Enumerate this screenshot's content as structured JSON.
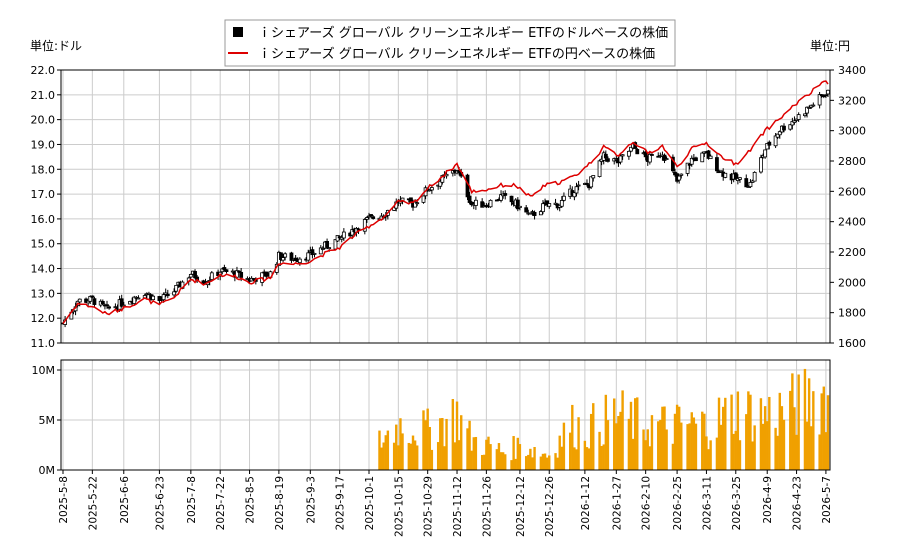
{
  "chart_data": [
    {
      "type": "candlestick+line",
      "legend": {
        "placement": "top-center",
        "entries": [
          {
            "label": "ｉシェアーズ グローバル クリーンエネルギー ETFのドルベースの株価",
            "marker": "square",
            "color": "#000000"
          },
          {
            "label": "ｉシェアーズ グローバル クリーンエネルギー ETFの円ベースの株価",
            "marker": "line",
            "color": "#dd0000"
          }
        ]
      },
      "left_unit": "単位:ドル",
      "right_unit": "単位:円",
      "ylim_left": [
        11.0,
        22.0
      ],
      "ylim_right": [
        1600,
        3400
      ],
      "yticks_left": [
        "11.0",
        "12.0",
        "13.0",
        "14.0",
        "15.0",
        "16.0",
        "17.0",
        "18.0",
        "19.0",
        "20.0",
        "21.0",
        "22.0"
      ],
      "yticks_right": [
        "1600",
        "1800",
        "2000",
        "2200",
        "2400",
        "2600",
        "2800",
        "3000",
        "3200",
        "3400"
      ],
      "grid": true,
      "series_usd_close_anchors": [
        [
          "2025-05-08",
          11.8
        ],
        [
          "2025-05-15",
          12.7
        ],
        [
          "2025-05-22",
          12.75
        ],
        [
          "2025-05-29",
          12.35
        ],
        [
          "2025-06-06",
          12.65
        ],
        [
          "2025-06-16",
          13.05
        ],
        [
          "2025-06-23",
          12.7
        ],
        [
          "2025-06-30",
          13.1
        ],
        [
          "2025-07-08",
          13.8
        ],
        [
          "2025-07-15",
          13.5
        ],
        [
          "2025-07-22",
          13.9
        ],
        [
          "2025-07-29",
          13.8
        ],
        [
          "2025-08-05",
          13.55
        ],
        [
          "2025-08-15",
          13.8
        ],
        [
          "2025-08-19",
          14.5
        ],
        [
          "2025-08-26",
          14.4
        ],
        [
          "2025-09-03",
          14.55
        ],
        [
          "2025-09-10",
          14.9
        ],
        [
          "2025-09-17",
          15.2
        ],
        [
          "2025-09-24",
          15.6
        ],
        [
          "2025-10-01",
          16.0
        ],
        [
          "2025-10-08",
          16.2
        ],
        [
          "2025-10-15",
          16.7
        ],
        [
          "2025-10-22",
          16.6
        ],
        [
          "2025-10-29",
          17.2
        ],
        [
          "2025-11-05",
          17.6
        ],
        [
          "2025-11-12",
          18.0
        ],
        [
          "2025-11-19",
          16.6
        ],
        [
          "2025-11-26",
          16.6
        ],
        [
          "2025-12-03",
          16.9
        ],
        [
          "2025-12-10",
          16.6
        ],
        [
          "2025-12-17",
          16.1
        ],
        [
          "2025-12-24",
          16.55
        ],
        [
          "2025-12-31",
          16.6
        ],
        [
          "2026-01-07",
          17.2
        ],
        [
          "2026-01-14",
          17.4
        ],
        [
          "2026-01-21",
          18.5
        ],
        [
          "2026-01-28",
          18.3
        ],
        [
          "2026-02-04",
          18.9
        ],
        [
          "2026-02-11",
          18.4
        ],
        [
          "2026-02-18",
          18.7
        ],
        [
          "2026-02-25",
          17.5
        ],
        [
          "2026-03-04",
          18.4
        ],
        [
          "2026-03-11",
          18.6
        ],
        [
          "2026-03-18",
          17.9
        ],
        [
          "2026-03-25",
          17.6
        ],
        [
          "2026-04-01",
          17.4
        ],
        [
          "2026-04-08",
          18.8
        ],
        [
          "2026-04-15",
          19.6
        ],
        [
          "2026-04-22",
          20.0
        ],
        [
          "2026-04-29",
          20.5
        ],
        [
          "2026-05-06",
          21.0
        ],
        [
          "2026-05-08",
          21.2
        ]
      ],
      "series_jpy_anchors": [
        [
          "2025-05-08",
          1730
        ],
        [
          "2025-05-15",
          1860
        ],
        [
          "2025-05-22",
          1840
        ],
        [
          "2025-05-29",
          1790
        ],
        [
          "2025-06-06",
          1830
        ],
        [
          "2025-06-16",
          1890
        ],
        [
          "2025-06-23",
          1850
        ],
        [
          "2025-06-30",
          1900
        ],
        [
          "2025-07-08",
          2020
        ],
        [
          "2025-07-15",
          1990
        ],
        [
          "2025-07-22",
          2050
        ],
        [
          "2025-07-29",
          2040
        ],
        [
          "2025-08-05",
          2000
        ],
        [
          "2025-08-15",
          2030
        ],
        [
          "2025-08-19",
          2130
        ],
        [
          "2025-08-26",
          2120
        ],
        [
          "2025-09-03",
          2140
        ],
        [
          "2025-09-10",
          2190
        ],
        [
          "2025-09-17",
          2230
        ],
        [
          "2025-09-24",
          2310
        ],
        [
          "2025-10-01",
          2370
        ],
        [
          "2025-10-08",
          2430
        ],
        [
          "2025-10-15",
          2530
        ],
        [
          "2025-10-22",
          2520
        ],
        [
          "2025-10-29",
          2620
        ],
        [
          "2025-11-05",
          2700
        ],
        [
          "2025-11-12",
          2780
        ],
        [
          "2025-11-19",
          2600
        ],
        [
          "2025-11-26",
          2610
        ],
        [
          "2025-12-03",
          2640
        ],
        [
          "2025-12-10",
          2640
        ],
        [
          "2025-12-17",
          2560
        ],
        [
          "2025-12-24",
          2640
        ],
        [
          "2025-12-31",
          2660
        ],
        [
          "2026-01-07",
          2700
        ],
        [
          "2026-01-14",
          2780
        ],
        [
          "2026-01-21",
          2890
        ],
        [
          "2026-01-28",
          2840
        ],
        [
          "2026-02-04",
          2930
        ],
        [
          "2026-02-11",
          2850
        ],
        [
          "2026-02-18",
          2900
        ],
        [
          "2026-02-25",
          2760
        ],
        [
          "2026-03-04",
          2880
        ],
        [
          "2026-03-11",
          2920
        ],
        [
          "2026-03-18",
          2830
        ],
        [
          "2026-03-25",
          2780
        ],
        [
          "2026-04-01",
          2870
        ],
        [
          "2026-04-08",
          3000
        ],
        [
          "2026-04-15",
          3080
        ],
        [
          "2026-04-22",
          3170
        ],
        [
          "2026-04-29",
          3240
        ],
        [
          "2026-05-06",
          3330
        ],
        [
          "2026-05-08",
          3300
        ]
      ],
      "xticks": [
        "2025-5-8",
        "2025-5-22",
        "2025-6-6",
        "2025-6-23",
        "2025-7-8",
        "2025-7-22",
        "2025-8-5",
        "2025-8-19",
        "2025-9-3",
        "2025-9-17",
        "2025-10-1",
        "2025-10-15",
        "2025-10-29",
        "2025-11-12",
        "2025-11-26",
        "2025-12-12",
        "2025-12-26",
        "2026-1-12",
        "2026-1-27",
        "2026-2-10",
        "2026-2-25",
        "2026-3-11",
        "2026-3-25",
        "2026-4-9",
        "2026-4-23",
        "2026-5-7"
      ]
    },
    {
      "type": "bar",
      "bar_color": "#f0a000",
      "ylim": [
        0,
        11000000
      ],
      "yticks": [
        "0M",
        "5M",
        "10M"
      ],
      "grid": true,
      "volume_anchors": [
        [
          "2025-05-08",
          0
        ],
        [
          "2025-10-03",
          0
        ],
        [
          "2025-10-06",
          2800000
        ],
        [
          "2025-10-15",
          4500000
        ],
        [
          "2025-10-29",
          4000000
        ],
        [
          "2025-11-12",
          5500000
        ],
        [
          "2025-11-19",
          3000000
        ],
        [
          "2025-11-26",
          2500000
        ],
        [
          "2025-12-05",
          1800000
        ],
        [
          "2025-12-12",
          2500000
        ],
        [
          "2025-12-19",
          2000000
        ],
        [
          "2025-12-26",
          1500000
        ],
        [
          "2026-01-05",
          4500000
        ],
        [
          "2026-01-12",
          4000000
        ],
        [
          "2026-01-27",
          5500000
        ],
        [
          "2026-02-10",
          4500000
        ],
        [
          "2026-02-25",
          4500000
        ],
        [
          "2026-03-11",
          4500000
        ],
        [
          "2026-03-25",
          6000000
        ],
        [
          "2026-04-09",
          5500000
        ],
        [
          "2026-04-23",
          6500000
        ],
        [
          "2026-05-07",
          7500000
        ]
      ]
    }
  ]
}
